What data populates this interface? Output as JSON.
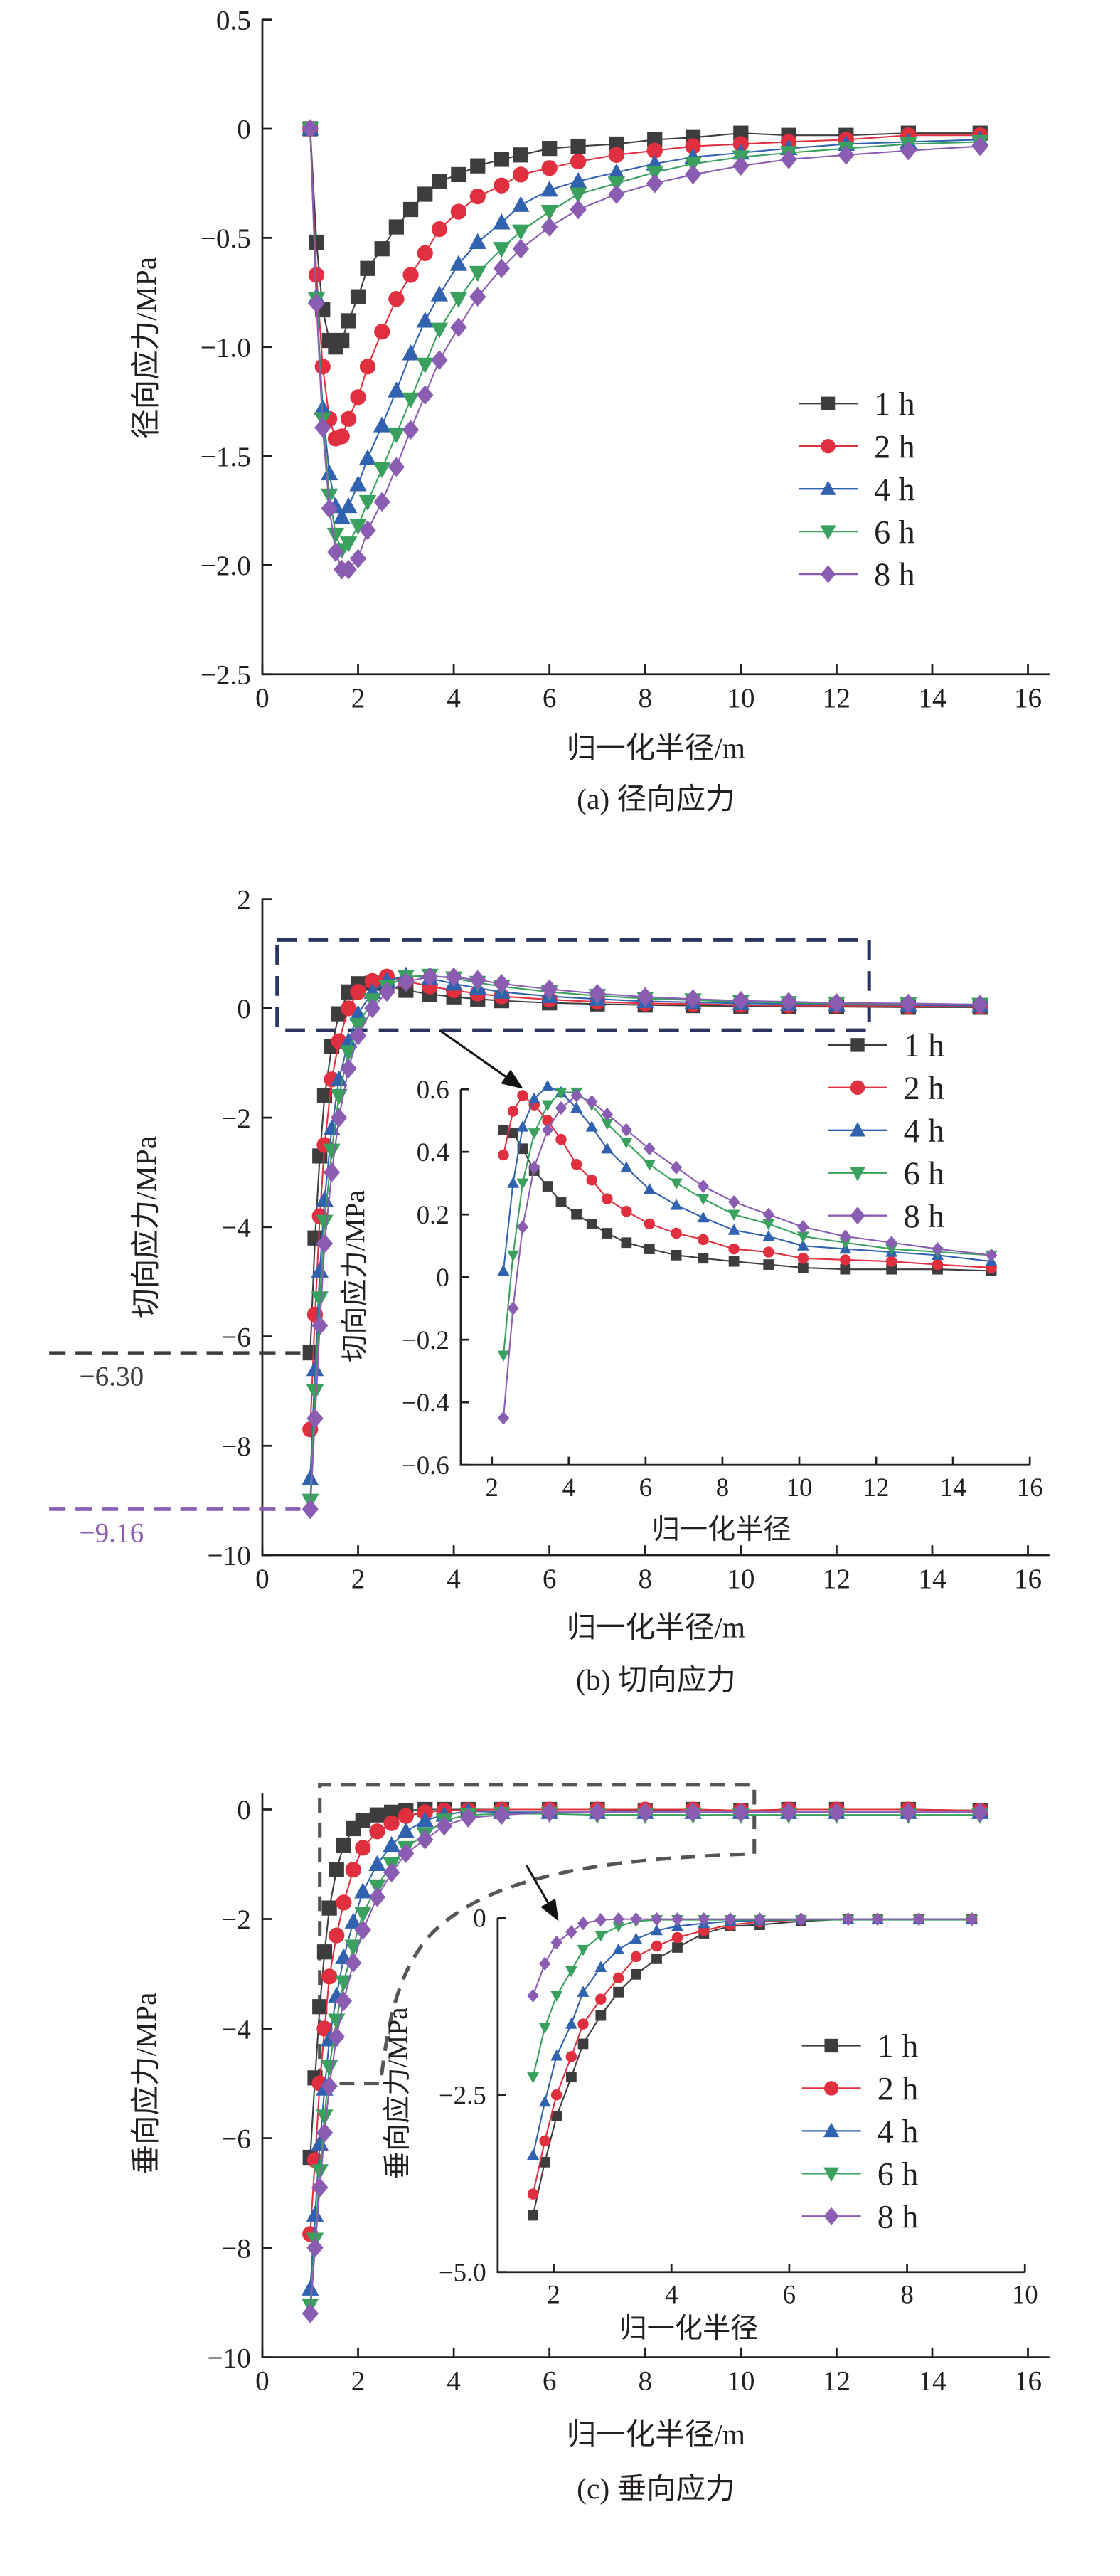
{
  "legend_labels": [
    "1 h",
    "2 h",
    "4 h",
    "6 h",
    "8 h"
  ],
  "series_colors": [
    "#3d3d3f",
    "#e0303f",
    "#3062b0",
    "#3aa05e",
    "#8a5cb2"
  ],
  "series_markers": [
    "square",
    "circle",
    "triangle-up",
    "triangle-down",
    "diamond"
  ],
  "chart_data": [
    {
      "id": "a",
      "type": "line",
      "title": "(a) 径向应力",
      "xlabel": "归一化半径/m",
      "ylabel": "径向应力/MPa",
      "xlim": [
        0,
        16.45
      ],
      "ylim": [
        -2.5,
        0.5
      ],
      "xticks": [
        0,
        2,
        4,
        6,
        8,
        10,
        12,
        14,
        16
      ],
      "yticks": [
        0.5,
        0,
        -0.5,
        -1.0,
        -1.5,
        -2.0,
        -2.5
      ],
      "ytick_labels": [
        "0.5",
        "0",
        "−0.5",
        "−1.0",
        "−1.5",
        "−2.0",
        "−2.5"
      ],
      "legend": "right",
      "x": [
        1.0,
        1.13,
        1.26,
        1.4,
        1.53,
        1.66,
        1.8,
        2.0,
        2.2,
        2.5,
        2.8,
        3.1,
        3.4,
        3.7,
        4.1,
        4.5,
        5.0,
        5.4,
        6.0,
        6.6,
        7.4,
        8.2,
        9.0,
        10.0,
        11.0,
        12.2,
        13.5,
        15.0
      ],
      "series": [
        {
          "name": "1 h",
          "values": [
            0,
            -0.52,
            -0.83,
            -0.97,
            -1.0,
            -0.97,
            -0.88,
            -0.77,
            -0.64,
            -0.55,
            -0.45,
            -0.37,
            -0.3,
            -0.24,
            -0.21,
            -0.17,
            -0.14,
            -0.12,
            -0.09,
            -0.08,
            -0.07,
            -0.05,
            -0.04,
            -0.02,
            -0.03,
            -0.03,
            -0.02,
            -0.02
          ]
        },
        {
          "name": "2 h",
          "values": [
            0,
            -0.67,
            -1.09,
            -1.33,
            -1.42,
            -1.41,
            -1.33,
            -1.23,
            -1.09,
            -0.93,
            -0.78,
            -0.67,
            -0.57,
            -0.46,
            -0.38,
            -0.31,
            -0.26,
            -0.21,
            -0.18,
            -0.15,
            -0.12,
            -0.1,
            -0.08,
            -0.07,
            -0.06,
            -0.05,
            -0.03,
            -0.03
          ]
        },
        {
          "name": "4 h",
          "values": [
            0,
            -0.77,
            -1.28,
            -1.58,
            -1.73,
            -1.78,
            -1.73,
            -1.63,
            -1.51,
            -1.36,
            -1.2,
            -1.03,
            -0.88,
            -0.76,
            -0.62,
            -0.52,
            -0.43,
            -0.35,
            -0.28,
            -0.24,
            -0.2,
            -0.16,
            -0.13,
            -0.11,
            -0.09,
            -0.07,
            -0.06,
            -0.05
          ]
        },
        {
          "name": "6 h",
          "values": [
            0,
            -0.78,
            -1.33,
            -1.68,
            -1.86,
            -1.93,
            -1.9,
            -1.82,
            -1.71,
            -1.56,
            -1.4,
            -1.24,
            -1.08,
            -0.92,
            -0.78,
            -0.66,
            -0.55,
            -0.47,
            -0.38,
            -0.3,
            -0.25,
            -0.2,
            -0.16,
            -0.13,
            -0.11,
            -0.09,
            -0.07,
            -0.06
          ]
        },
        {
          "name": "8 h",
          "values": [
            0,
            -0.8,
            -1.37,
            -1.74,
            -1.94,
            -2.02,
            -2.02,
            -1.97,
            -1.84,
            -1.71,
            -1.55,
            -1.38,
            -1.22,
            -1.06,
            -0.91,
            -0.77,
            -0.64,
            -0.55,
            -0.45,
            -0.37,
            -0.3,
            -0.25,
            -0.21,
            -0.17,
            -0.14,
            -0.12,
            -0.1,
            -0.08
          ]
        }
      ]
    },
    {
      "id": "b",
      "type": "line",
      "title": "(b) 切向应力",
      "xlabel": "归一化半径/m",
      "ylabel": "切向应力/MPa",
      "xlim": [
        0,
        16.45
      ],
      "ylim": [
        -10,
        2
      ],
      "xticks": [
        0,
        2,
        4,
        6,
        8,
        10,
        12,
        14,
        16
      ],
      "yticks": [
        2,
        0,
        -2,
        -4,
        -6,
        -8,
        -10
      ],
      "ytick_labels": [
        "2",
        "0",
        "−2",
        "−4",
        "−6",
        "−8",
        "−10"
      ],
      "legend": "right",
      "annotations": [
        {
          "text": "−6.30",
          "value": -6.3,
          "color": "#3d3d3f"
        },
        {
          "text": "−9.16",
          "value": -9.16,
          "color": "#8a5cb2"
        }
      ],
      "x": [
        1.0,
        1.1,
        1.2,
        1.3,
        1.45,
        1.6,
        1.8,
        2.0,
        2.3,
        2.6,
        3.0,
        3.5,
        4.0,
        4.5,
        5.0,
        6.0,
        7.0,
        8.0,
        9.0,
        10.0,
        11.0,
        12.0,
        13.5,
        15.0
      ],
      "series": [
        {
          "name": "1 h",
          "values": [
            -6.3,
            -4.2,
            -2.7,
            -1.6,
            -0.7,
            -0.1,
            0.3,
            0.45,
            0.46,
            0.41,
            0.33,
            0.26,
            0.21,
            0.17,
            0.14,
            0.1,
            0.08,
            0.06,
            0.05,
            0.04,
            0.03,
            0.03,
            0.02,
            0.02
          ]
        },
        {
          "name": "2 h",
          "values": [
            -7.7,
            -5.6,
            -3.8,
            -2.5,
            -1.3,
            -0.6,
            0.0,
            0.3,
            0.5,
            0.58,
            0.5,
            0.4,
            0.33,
            0.27,
            0.22,
            0.16,
            0.12,
            0.09,
            0.08,
            0.06,
            0.05,
            0.05,
            0.04,
            0.03
          ]
        },
        {
          "name": "4 h",
          "values": [
            -8.6,
            -6.6,
            -4.8,
            -3.5,
            -2.2,
            -1.3,
            -0.6,
            -0.1,
            0.3,
            0.5,
            0.6,
            0.55,
            0.45,
            0.37,
            0.3,
            0.22,
            0.17,
            0.13,
            0.11,
            0.09,
            0.08,
            0.07,
            0.06,
            0.05
          ]
        },
        {
          "name": "6 h",
          "values": [
            -9.0,
            -7.0,
            -5.3,
            -3.9,
            -2.6,
            -1.6,
            -0.8,
            -0.3,
            0.15,
            0.4,
            0.58,
            0.6,
            0.55,
            0.47,
            0.4,
            0.3,
            0.23,
            0.18,
            0.15,
            0.12,
            0.1,
            0.09,
            0.08,
            0.07
          ]
        },
        {
          "name": "8 h",
          "values": [
            -9.16,
            -7.5,
            -5.8,
            -4.3,
            -3.0,
            -2.0,
            -1.1,
            -0.5,
            0.0,
            0.3,
            0.48,
            0.58,
            0.57,
            0.52,
            0.45,
            0.35,
            0.27,
            0.21,
            0.17,
            0.14,
            0.12,
            0.1,
            0.09,
            0.07
          ]
        }
      ]
    },
    {
      "id": "b-inset",
      "type": "line",
      "title": "",
      "xlabel": "归一化半径",
      "ylabel": "切向应力/MPa",
      "xlim": [
        1.19,
        16
      ],
      "ylim": [
        -0.6,
        0.6
      ],
      "xticks": [
        2,
        4,
        6,
        8,
        10,
        12,
        14,
        16
      ],
      "yticks": [
        0.6,
        0.4,
        0.2,
        0,
        -0.2,
        -0.4,
        -0.6
      ],
      "ytick_labels": [
        "0.6",
        "0.4",
        "0.2",
        "0",
        "−0.2",
        "−0.4",
        "−0.6"
      ],
      "x": [
        2.3,
        2.55,
        2.8,
        3.1,
        3.45,
        3.8,
        4.2,
        4.6,
        5.0,
        5.5,
        6.1,
        6.8,
        7.5,
        8.3,
        9.2,
        10.1,
        11.2,
        12.4,
        13.6,
        15.0
      ],
      "series": [
        {
          "name": "1 h",
          "values": [
            0.47,
            0.46,
            0.41,
            0.34,
            0.29,
            0.24,
            0.2,
            0.17,
            0.14,
            0.11,
            0.09,
            0.07,
            0.06,
            0.05,
            0.04,
            0.03,
            0.025,
            0.025,
            0.025,
            0.02
          ]
        },
        {
          "name": "2 h",
          "values": [
            0.39,
            0.53,
            0.58,
            0.55,
            0.5,
            0.44,
            0.36,
            0.31,
            0.25,
            0.21,
            0.17,
            0.14,
            0.12,
            0.09,
            0.08,
            0.06,
            0.055,
            0.05,
            0.04,
            0.03
          ]
        },
        {
          "name": "4 h",
          "values": [
            0.02,
            0.3,
            0.48,
            0.57,
            0.61,
            0.59,
            0.54,
            0.48,
            0.41,
            0.35,
            0.28,
            0.23,
            0.19,
            0.15,
            0.13,
            0.1,
            0.09,
            0.08,
            0.07,
            0.05
          ]
        },
        {
          "name": "6 h",
          "values": [
            -0.25,
            0.07,
            0.3,
            0.46,
            0.55,
            0.59,
            0.59,
            0.55,
            0.49,
            0.43,
            0.36,
            0.3,
            0.25,
            0.2,
            0.17,
            0.13,
            0.11,
            0.09,
            0.08,
            0.07
          ]
        },
        {
          "name": "8 h",
          "values": [
            -0.45,
            -0.1,
            0.16,
            0.35,
            0.47,
            0.54,
            0.58,
            0.56,
            0.52,
            0.47,
            0.41,
            0.35,
            0.29,
            0.24,
            0.2,
            0.16,
            0.13,
            0.11,
            0.09,
            0.07
          ]
        }
      ]
    },
    {
      "id": "c",
      "type": "line",
      "title": "(c) 垂向应力",
      "xlabel": "归一化半径/m",
      "ylabel": "垂向应力/MPa",
      "xlim": [
        0,
        16.45
      ],
      "ylim": [
        -10,
        0.3
      ],
      "xticks": [
        0,
        2,
        4,
        6,
        8,
        10,
        12,
        14,
        16
      ],
      "yticks": [
        0,
        -2,
        -4,
        -6,
        -8,
        -10
      ],
      "ytick_labels": [
        "0",
        "−2",
        "−4",
        "−6",
        "−8",
        "−10"
      ],
      "legend": "right",
      "x": [
        1.0,
        1.1,
        1.2,
        1.3,
        1.4,
        1.55,
        1.7,
        1.9,
        2.1,
        2.4,
        2.7,
        3.0,
        3.4,
        3.8,
        4.3,
        5.0,
        6.0,
        7.0,
        8.0,
        9.0,
        10.0,
        11.0,
        12.0,
        13.5,
        15.0
      ],
      "series": [
        {
          "name": "1 h",
          "values": [
            -6.35,
            -4.9,
            -3.6,
            -2.6,
            -1.8,
            -1.1,
            -0.65,
            -0.35,
            -0.2,
            -0.1,
            -0.05,
            -0.02,
            0,
            0,
            0,
            0,
            0,
            0,
            -0.02,
            0,
            -0.02,
            0,
            0,
            0,
            -0.02
          ]
        },
        {
          "name": "2 h",
          "values": [
            -7.75,
            -6.4,
            -5.0,
            -4.0,
            -3.05,
            -2.3,
            -1.7,
            -1.1,
            -0.7,
            -0.4,
            -0.25,
            -0.12,
            -0.05,
            -0.02,
            -0.01,
            0,
            0,
            0,
            0,
            0,
            -0.02,
            0,
            0,
            0,
            -0.02
          ]
        },
        {
          "name": "4 h",
          "values": [
            -8.75,
            -7.4,
            -6.1,
            -5.1,
            -4.2,
            -3.4,
            -2.7,
            -2.05,
            -1.5,
            -1.0,
            -0.65,
            -0.4,
            -0.2,
            -0.1,
            -0.03,
            -0.05,
            -0.05,
            -0.05,
            -0.05,
            -0.05,
            -0.05,
            -0.05,
            -0.05,
            -0.05,
            -0.05
          ]
        },
        {
          "name": "6 h",
          "values": [
            -9.05,
            -7.85,
            -6.6,
            -5.6,
            -4.7,
            -3.85,
            -3.15,
            -2.5,
            -1.9,
            -1.4,
            -1.0,
            -0.7,
            -0.45,
            -0.2,
            -0.1,
            -0.08,
            -0.08,
            -0.1,
            -0.1,
            -0.1,
            -0.1,
            -0.1,
            -0.1,
            -0.1,
            -0.1
          ]
        },
        {
          "name": "8 h",
          "values": [
            -9.2,
            -8.0,
            -6.9,
            -5.9,
            -5.05,
            -4.15,
            -3.5,
            -2.8,
            -2.2,
            -1.6,
            -1.15,
            -0.8,
            -0.55,
            -0.3,
            -0.15,
            -0.1,
            -0.05,
            -0.05,
            -0.05,
            -0.05,
            -0.05,
            -0.05,
            -0.05,
            -0.05,
            -0.05
          ]
        }
      ]
    },
    {
      "id": "c-inset",
      "type": "line",
      "title": "",
      "xlabel": "归一化半径",
      "ylabel": "垂向应力/MPa",
      "xlim": [
        1.05,
        10
      ],
      "ylim": [
        -5.0,
        0
      ],
      "xticks": [
        2,
        4,
        6,
        8,
        10
      ],
      "yticks": [
        0,
        -2.5,
        -5.0
      ],
      "ytick_labels": [
        "0",
        "−2.5",
        "−5.0"
      ],
      "x": [
        1.65,
        1.85,
        2.05,
        2.3,
        2.5,
        2.8,
        3.1,
        3.4,
        3.75,
        4.1,
        4.55,
        5.0,
        5.5,
        6.2,
        7.0,
        7.5,
        8.2,
        9.1
      ],
      "series": [
        {
          "name": "1 h",
          "values": [
            -4.2,
            -3.45,
            -2.8,
            -2.25,
            -1.78,
            -1.38,
            -1.05,
            -0.8,
            -0.58,
            -0.42,
            -0.22,
            -0.12,
            -0.1,
            -0.05,
            -0.02,
            -0.02,
            -0.02,
            -0.02
          ]
        },
        {
          "name": "2 h",
          "values": [
            -3.9,
            -3.15,
            -2.5,
            -1.96,
            -1.5,
            -1.15,
            -0.85,
            -0.55,
            -0.4,
            -0.28,
            -0.18,
            -0.1,
            -0.06,
            -0.03,
            -0.02,
            -0.02,
            -0.02,
            -0.02
          ]
        },
        {
          "name": "4 h",
          "values": [
            -3.35,
            -2.6,
            -1.95,
            -1.5,
            -1.05,
            -0.7,
            -0.45,
            -0.3,
            -0.18,
            -0.12,
            -0.08,
            -0.05,
            -0.04,
            -0.03,
            -0.02,
            -0.02,
            -0.02,
            -0.02
          ]
        },
        {
          "name": "6 h",
          "values": [
            -2.25,
            -1.55,
            -1.1,
            -0.75,
            -0.45,
            -0.25,
            -0.12,
            -0.05,
            -0.03,
            -0.03,
            -0.03,
            -0.03,
            -0.03,
            -0.03,
            -0.03,
            -0.03,
            -0.03,
            -0.03
          ]
        },
        {
          "name": "8 h",
          "values": [
            -1.1,
            -0.65,
            -0.35,
            -0.2,
            -0.08,
            -0.03,
            -0.02,
            -0.02,
            -0.02,
            -0.02,
            -0.02,
            -0.02,
            -0.02,
            -0.02,
            -0.02,
            -0.02,
            -0.02,
            -0.02
          ]
        }
      ]
    }
  ]
}
